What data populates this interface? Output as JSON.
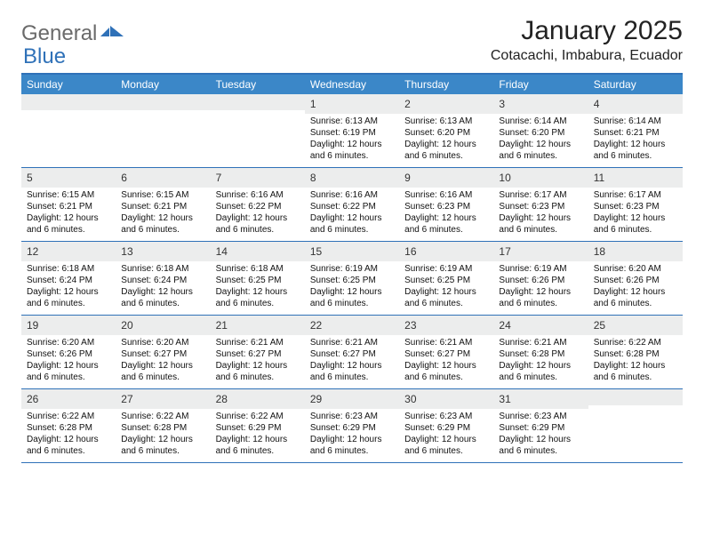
{
  "logo": {
    "text1": "General",
    "text2": "Blue",
    "color_gray": "#6a6a6a",
    "color_blue": "#2f71b8"
  },
  "title": "January 2025",
  "location": "Cotacachi, Imbabura, Ecuador",
  "header_bg": "#3b87c8",
  "border_color": "#2f71b8",
  "daynum_bg": "#eceded",
  "day_names": [
    "Sunday",
    "Monday",
    "Tuesday",
    "Wednesday",
    "Thursday",
    "Friday",
    "Saturday"
  ],
  "weeks": [
    [
      {
        "empty": true
      },
      {
        "empty": true
      },
      {
        "empty": true
      },
      {
        "day": "1",
        "sunrise": "Sunrise: 6:13 AM",
        "sunset": "Sunset: 6:19 PM",
        "d1": "Daylight: 12 hours",
        "d2": "and 6 minutes."
      },
      {
        "day": "2",
        "sunrise": "Sunrise: 6:13 AM",
        "sunset": "Sunset: 6:20 PM",
        "d1": "Daylight: 12 hours",
        "d2": "and 6 minutes."
      },
      {
        "day": "3",
        "sunrise": "Sunrise: 6:14 AM",
        "sunset": "Sunset: 6:20 PM",
        "d1": "Daylight: 12 hours",
        "d2": "and 6 minutes."
      },
      {
        "day": "4",
        "sunrise": "Sunrise: 6:14 AM",
        "sunset": "Sunset: 6:21 PM",
        "d1": "Daylight: 12 hours",
        "d2": "and 6 minutes."
      }
    ],
    [
      {
        "day": "5",
        "sunrise": "Sunrise: 6:15 AM",
        "sunset": "Sunset: 6:21 PM",
        "d1": "Daylight: 12 hours",
        "d2": "and 6 minutes."
      },
      {
        "day": "6",
        "sunrise": "Sunrise: 6:15 AM",
        "sunset": "Sunset: 6:21 PM",
        "d1": "Daylight: 12 hours",
        "d2": "and 6 minutes."
      },
      {
        "day": "7",
        "sunrise": "Sunrise: 6:16 AM",
        "sunset": "Sunset: 6:22 PM",
        "d1": "Daylight: 12 hours",
        "d2": "and 6 minutes."
      },
      {
        "day": "8",
        "sunrise": "Sunrise: 6:16 AM",
        "sunset": "Sunset: 6:22 PM",
        "d1": "Daylight: 12 hours",
        "d2": "and 6 minutes."
      },
      {
        "day": "9",
        "sunrise": "Sunrise: 6:16 AM",
        "sunset": "Sunset: 6:23 PM",
        "d1": "Daylight: 12 hours",
        "d2": "and 6 minutes."
      },
      {
        "day": "10",
        "sunrise": "Sunrise: 6:17 AM",
        "sunset": "Sunset: 6:23 PM",
        "d1": "Daylight: 12 hours",
        "d2": "and 6 minutes."
      },
      {
        "day": "11",
        "sunrise": "Sunrise: 6:17 AM",
        "sunset": "Sunset: 6:23 PM",
        "d1": "Daylight: 12 hours",
        "d2": "and 6 minutes."
      }
    ],
    [
      {
        "day": "12",
        "sunrise": "Sunrise: 6:18 AM",
        "sunset": "Sunset: 6:24 PM",
        "d1": "Daylight: 12 hours",
        "d2": "and 6 minutes."
      },
      {
        "day": "13",
        "sunrise": "Sunrise: 6:18 AM",
        "sunset": "Sunset: 6:24 PM",
        "d1": "Daylight: 12 hours",
        "d2": "and 6 minutes."
      },
      {
        "day": "14",
        "sunrise": "Sunrise: 6:18 AM",
        "sunset": "Sunset: 6:25 PM",
        "d1": "Daylight: 12 hours",
        "d2": "and 6 minutes."
      },
      {
        "day": "15",
        "sunrise": "Sunrise: 6:19 AM",
        "sunset": "Sunset: 6:25 PM",
        "d1": "Daylight: 12 hours",
        "d2": "and 6 minutes."
      },
      {
        "day": "16",
        "sunrise": "Sunrise: 6:19 AM",
        "sunset": "Sunset: 6:25 PM",
        "d1": "Daylight: 12 hours",
        "d2": "and 6 minutes."
      },
      {
        "day": "17",
        "sunrise": "Sunrise: 6:19 AM",
        "sunset": "Sunset: 6:26 PM",
        "d1": "Daylight: 12 hours",
        "d2": "and 6 minutes."
      },
      {
        "day": "18",
        "sunrise": "Sunrise: 6:20 AM",
        "sunset": "Sunset: 6:26 PM",
        "d1": "Daylight: 12 hours",
        "d2": "and 6 minutes."
      }
    ],
    [
      {
        "day": "19",
        "sunrise": "Sunrise: 6:20 AM",
        "sunset": "Sunset: 6:26 PM",
        "d1": "Daylight: 12 hours",
        "d2": "and 6 minutes."
      },
      {
        "day": "20",
        "sunrise": "Sunrise: 6:20 AM",
        "sunset": "Sunset: 6:27 PM",
        "d1": "Daylight: 12 hours",
        "d2": "and 6 minutes."
      },
      {
        "day": "21",
        "sunrise": "Sunrise: 6:21 AM",
        "sunset": "Sunset: 6:27 PM",
        "d1": "Daylight: 12 hours",
        "d2": "and 6 minutes."
      },
      {
        "day": "22",
        "sunrise": "Sunrise: 6:21 AM",
        "sunset": "Sunset: 6:27 PM",
        "d1": "Daylight: 12 hours",
        "d2": "and 6 minutes."
      },
      {
        "day": "23",
        "sunrise": "Sunrise: 6:21 AM",
        "sunset": "Sunset: 6:27 PM",
        "d1": "Daylight: 12 hours",
        "d2": "and 6 minutes."
      },
      {
        "day": "24",
        "sunrise": "Sunrise: 6:21 AM",
        "sunset": "Sunset: 6:28 PM",
        "d1": "Daylight: 12 hours",
        "d2": "and 6 minutes."
      },
      {
        "day": "25",
        "sunrise": "Sunrise: 6:22 AM",
        "sunset": "Sunset: 6:28 PM",
        "d1": "Daylight: 12 hours",
        "d2": "and 6 minutes."
      }
    ],
    [
      {
        "day": "26",
        "sunrise": "Sunrise: 6:22 AM",
        "sunset": "Sunset: 6:28 PM",
        "d1": "Daylight: 12 hours",
        "d2": "and 6 minutes."
      },
      {
        "day": "27",
        "sunrise": "Sunrise: 6:22 AM",
        "sunset": "Sunset: 6:28 PM",
        "d1": "Daylight: 12 hours",
        "d2": "and 6 minutes."
      },
      {
        "day": "28",
        "sunrise": "Sunrise: 6:22 AM",
        "sunset": "Sunset: 6:29 PM",
        "d1": "Daylight: 12 hours",
        "d2": "and 6 minutes."
      },
      {
        "day": "29",
        "sunrise": "Sunrise: 6:23 AM",
        "sunset": "Sunset: 6:29 PM",
        "d1": "Daylight: 12 hours",
        "d2": "and 6 minutes."
      },
      {
        "day": "30",
        "sunrise": "Sunrise: 6:23 AM",
        "sunset": "Sunset: 6:29 PM",
        "d1": "Daylight: 12 hours",
        "d2": "and 6 minutes."
      },
      {
        "day": "31",
        "sunrise": "Sunrise: 6:23 AM",
        "sunset": "Sunset: 6:29 PM",
        "d1": "Daylight: 12 hours",
        "d2": "and 6 minutes."
      },
      {
        "empty": true
      }
    ]
  ]
}
